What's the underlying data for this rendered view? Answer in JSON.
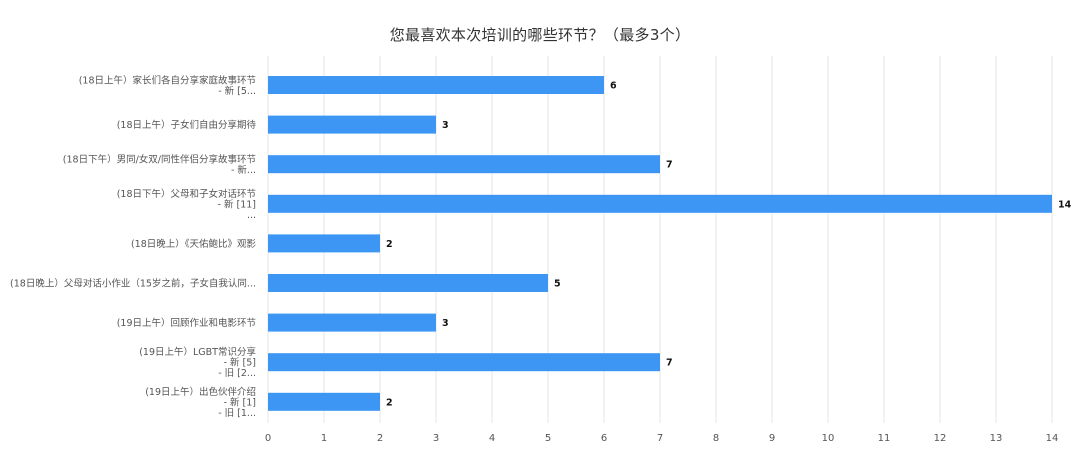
{
  "chart_data": {
    "type": "bar",
    "orientation": "horizontal",
    "title": "您最喜欢本次培训的哪些环节？（最多3个）",
    "categories": [
      [
        "(18日上午）家长们各自分享家庭故事环节",
        "- 新 [5..."
      ],
      [
        "(18日上午）子女们自由分享期待"
      ],
      [
        "(18日下午）男同/女双/同性伴侣分享故事环节",
        "- 新..."
      ],
      [
        "(18日下午）父母和子女对话环节",
        "- 新 [11]",
        "..."
      ],
      [
        "(18日晚上）《天佑鲍比》观影"
      ],
      [
        "(18日晚上）父母对话小作业（15岁之前，子女自我认同..."
      ],
      [
        "(19日上午）回顾作业和电影环节"
      ],
      [
        "(19日上午）LGBT常识分享",
        "- 新 [5]",
        "- 旧 [2..."
      ],
      [
        "(19日上午）出色伙伴介绍",
        "- 新 [1]",
        "- 旧 [1..."
      ]
    ],
    "values": [
      6,
      3,
      7,
      14,
      2,
      5,
      3,
      7,
      2
    ],
    "xlim": [
      0,
      14
    ],
    "xticks": [
      0,
      1,
      2,
      3,
      4,
      5,
      6,
      7,
      8,
      9,
      10,
      11,
      12,
      13,
      14
    ],
    "grid": true,
    "bar_color": "#3d95f4",
    "grid_color": "#e6e6e6"
  }
}
